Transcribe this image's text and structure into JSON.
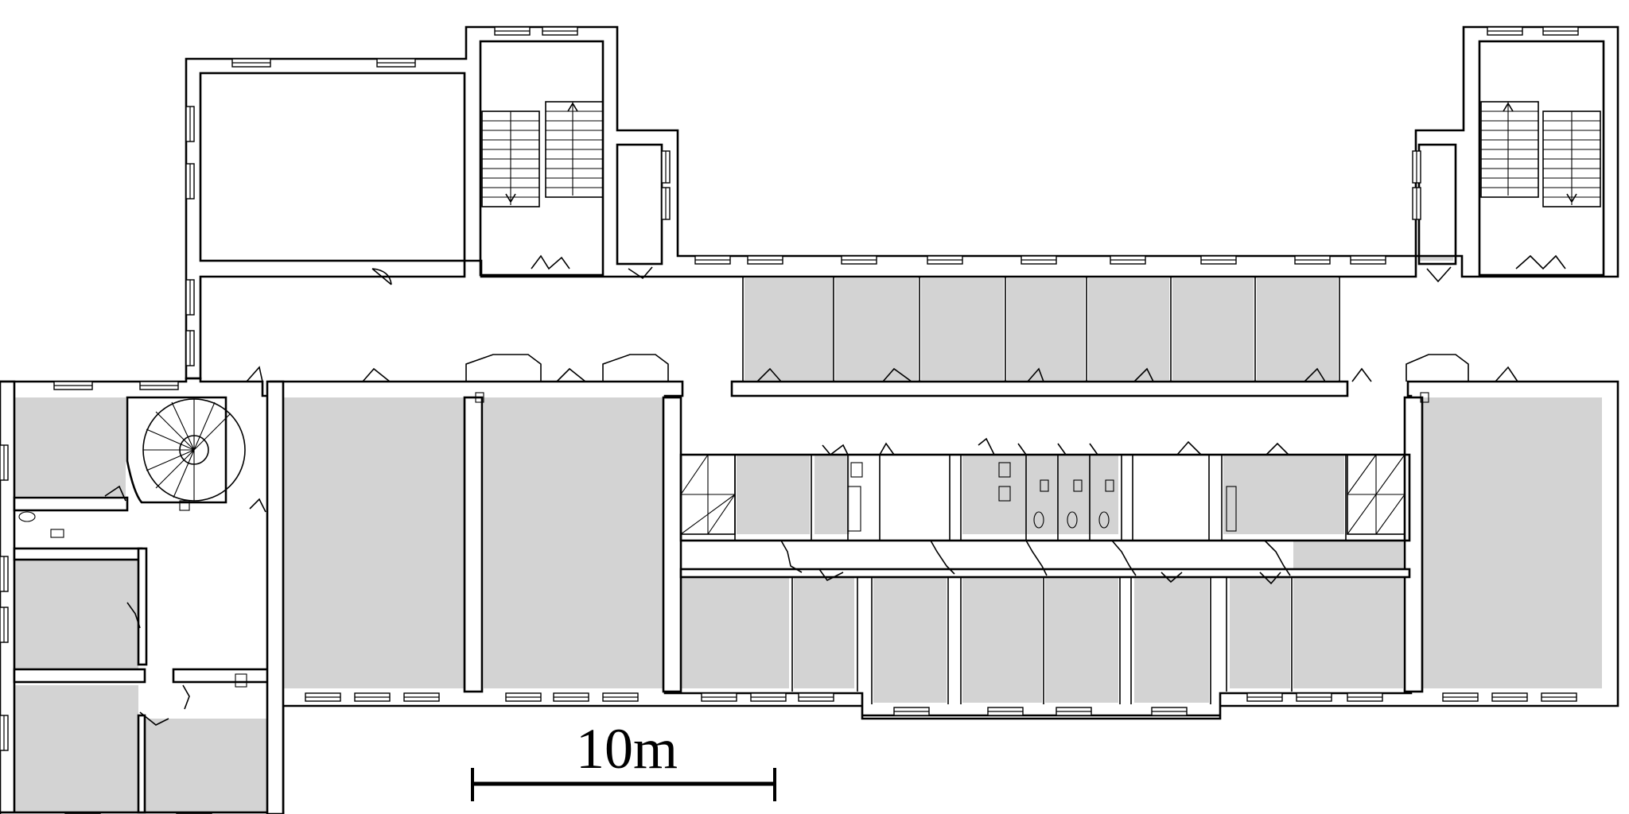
{
  "scale_bar": {
    "label": "10m"
  },
  "colors": {
    "room_fill": "#d3d3d3",
    "wall": "#000000",
    "background": "#ffffff"
  },
  "icons": [
    "spiral-stair-icon",
    "straight-stair-icon",
    "door-swing-icon",
    "window-icon",
    "toilet-icon",
    "sink-icon",
    "shower-icon",
    "elevator-icon"
  ]
}
